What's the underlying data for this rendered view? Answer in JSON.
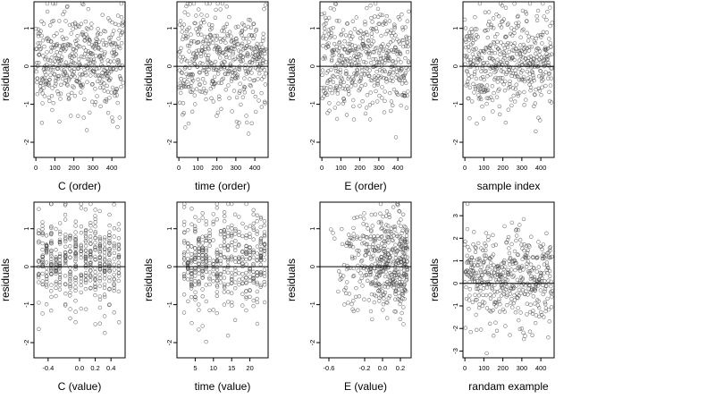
{
  "charts": [
    {
      "type": "scatter",
      "xlabel": "C (order)",
      "ylabel": "residuals",
      "xlim": [
        -10,
        470
      ],
      "ylim": [
        -2.4,
        1.7
      ],
      "xticks": [
        0,
        100,
        200,
        300,
        400
      ],
      "yticks": [
        -2,
        -1,
        0,
        1
      ],
      "hline": 0,
      "pattern": "uniform",
      "n": 460,
      "seed": 11
    },
    {
      "type": "scatter",
      "xlabel": "time (order)",
      "ylabel": "residuals",
      "xlim": [
        -10,
        470
      ],
      "ylim": [
        -2.4,
        1.7
      ],
      "xticks": [
        0,
        100,
        200,
        300,
        400
      ],
      "yticks": [
        -2,
        -1,
        0,
        1
      ],
      "hline": 0,
      "pattern": "uniform",
      "n": 460,
      "seed": 23
    },
    {
      "type": "scatter",
      "xlabel": "E (order)",
      "ylabel": "residuals",
      "xlim": [
        -10,
        470
      ],
      "ylim": [
        -2.4,
        1.7
      ],
      "xticks": [
        0,
        100,
        200,
        300,
        400
      ],
      "yticks": [
        -2,
        -1,
        0,
        1
      ],
      "hline": 0,
      "pattern": "uniform",
      "n": 460,
      "seed": 37
    },
    {
      "type": "scatter",
      "xlabel": "sample index",
      "ylabel": "residuals",
      "xlim": [
        -10,
        470
      ],
      "ylim": [
        -2.4,
        1.7
      ],
      "xticks": [
        0,
        100,
        200,
        300,
        400
      ],
      "yticks": [
        -2,
        -1,
        0,
        1
      ],
      "hline": 0,
      "pattern": "uniform",
      "n": 460,
      "seed": 41
    },
    {
      "type": "scatter",
      "xlabel": "C (value)",
      "ylabel": "residuals",
      "xlim": [
        -0.58,
        0.58
      ],
      "ylim": [
        -2.4,
        1.7
      ],
      "xticks": [
        -0.4,
        0.0,
        0.2,
        0.4
      ],
      "xtick_labels": [
        "-0.4",
        "0.0",
        "0.2",
        "0.4"
      ],
      "yticks": [
        -2,
        -1,
        0,
        1
      ],
      "hline": 0,
      "pattern": "columns",
      "columns": [
        -0.52,
        -0.47,
        -0.42,
        -0.36,
        -0.3,
        -0.25,
        -0.18,
        -0.12,
        -0.05,
        0.02,
        0.08,
        0.14,
        0.2,
        0.26,
        0.32,
        0.38,
        0.44,
        0.5
      ],
      "n": 460,
      "seed": 53
    },
    {
      "type": "scatter",
      "xlabel": "time (value)",
      "ylabel": "residuals",
      "xlim": [
        0,
        25
      ],
      "ylim": [
        -2.4,
        1.7
      ],
      "xticks": [
        5,
        10,
        15,
        20
      ],
      "yticks": [
        -2,
        -1,
        0,
        1
      ],
      "hline": 0,
      "pattern": "columns",
      "columns": [
        2,
        3,
        4,
        5,
        6,
        7,
        8,
        9,
        10,
        11,
        12,
        13,
        14,
        15,
        16,
        17,
        18,
        19,
        20,
        21,
        22,
        23,
        24
      ],
      "n": 460,
      "seed": 67
    },
    {
      "type": "scatter",
      "xlabel": "E (value)",
      "ylabel": "residuals",
      "xlim": [
        -0.7,
        0.32
      ],
      "ylim": [
        -2.4,
        1.7
      ],
      "xticks": [
        -0.6,
        -0.2,
        0.0,
        0.2
      ],
      "xtick_labels": [
        "-0.6",
        "-0.2",
        "0.0",
        "0.2"
      ],
      "yticks": [
        -2,
        -1,
        0,
        1
      ],
      "hline": 0,
      "pattern": "skewed",
      "n": 460,
      "seed": 79
    },
    {
      "type": "scatter",
      "xlabel": "randam example",
      "ylabel": "residuals",
      "xlim": [
        -10,
        470
      ],
      "ylim": [
        -3.3,
        3.6
      ],
      "xticks": [
        0,
        100,
        200,
        300,
        400
      ],
      "yticks": [
        -3,
        -2,
        -1,
        0,
        1,
        2,
        3
      ],
      "hline": 0,
      "pattern": "uniform_wide",
      "n": 460,
      "seed": 97
    }
  ]
}
